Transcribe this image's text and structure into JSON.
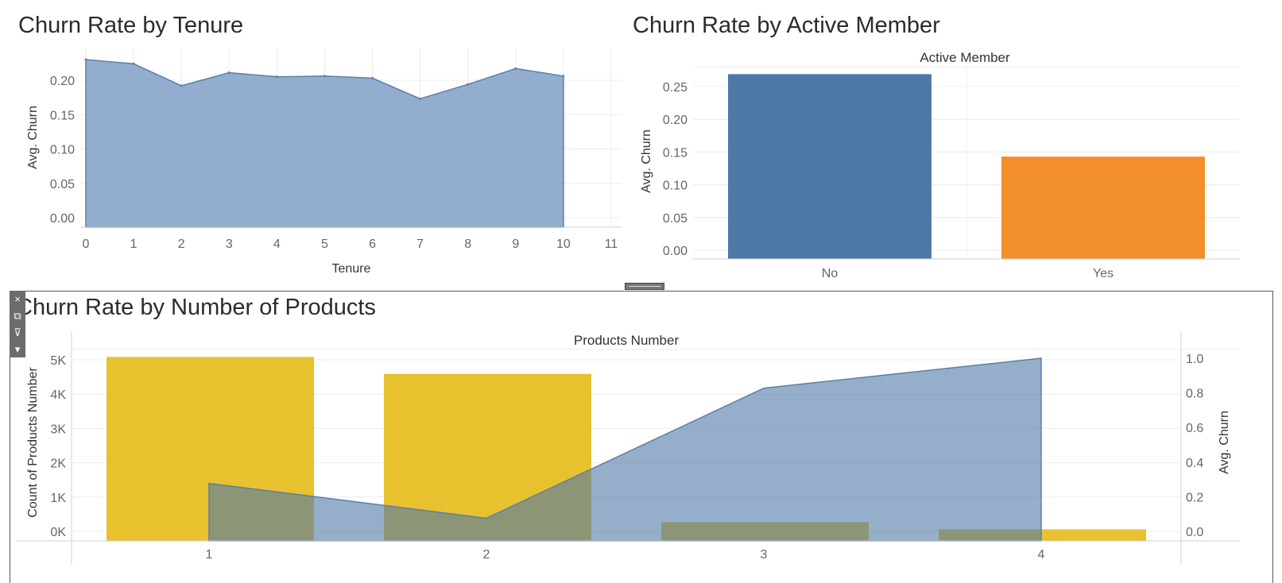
{
  "titles": {
    "tenure": "Churn Rate by Tenure",
    "active": "Churn Rate by Active Member",
    "products": "Churn Rate by Number of Products"
  },
  "toolbar": {
    "close_icon": "×",
    "popout_icon": "⧉",
    "filter_icon": "⊽",
    "menu_icon": "▾"
  },
  "colors": {
    "blue": "#4e79a7",
    "blue_area": "#7a9bc2",
    "orange": "#f28e2b",
    "yellow": "#e8c12f"
  },
  "chart_data": [
    {
      "type": "area",
      "title": "Churn Rate by Tenure",
      "xlabel": "Tenure",
      "ylabel": "Avg. Churn",
      "x": [
        0,
        1,
        2,
        3,
        4,
        5,
        6,
        7,
        8,
        9,
        10
      ],
      "values": [
        0.23,
        0.224,
        0.192,
        0.211,
        0.205,
        0.206,
        0.203,
        0.173,
        0.194,
        0.217,
        0.206
      ],
      "x_ticks": [
        "0",
        "1",
        "2",
        "3",
        "4",
        "5",
        "6",
        "7",
        "8",
        "9",
        "10",
        "11"
      ],
      "y_ticks": [
        "0.00",
        "0.05",
        "0.10",
        "0.15",
        "0.20"
      ],
      "xlim": [
        0,
        11
      ],
      "ylim": [
        0,
        0.24
      ],
      "grid": true
    },
    {
      "type": "bar",
      "title": "Churn Rate by Active Member",
      "header": "Active Member",
      "ylabel": "Avg. Churn",
      "categories": [
        "No",
        "Yes"
      ],
      "values": [
        0.269,
        0.143
      ],
      "colors": [
        "#4e79a7",
        "#f28e2b"
      ],
      "y_ticks": [
        "0.00",
        "0.05",
        "0.10",
        "0.15",
        "0.20",
        "0.25"
      ],
      "ylim": [
        0,
        0.27
      ],
      "grid": true
    },
    {
      "type": "bar",
      "title": "Churn Rate by Number of Products",
      "header": "Products Number",
      "ylabel": "Count of Products Number",
      "y2label": "Avg. Churn",
      "categories": [
        "1",
        "2",
        "3",
        "4"
      ],
      "series": [
        {
          "name": "Count of Products Number",
          "type": "bar",
          "values": [
            5084,
            4590,
            266,
            60
          ]
        },
        {
          "name": "Avg. Churn",
          "type": "area",
          "values": [
            0.277,
            0.076,
            0.827,
            1.0
          ]
        }
      ],
      "y_ticks": [
        "0K",
        "1K",
        "2K",
        "3K",
        "4K",
        "5K"
      ],
      "y2_ticks": [
        "0.0",
        "0.2",
        "0.4",
        "0.6",
        "0.8",
        "1.0"
      ],
      "ylim": [
        0,
        5000
      ],
      "y2lim": [
        0,
        1.0
      ],
      "grid": true
    }
  ]
}
